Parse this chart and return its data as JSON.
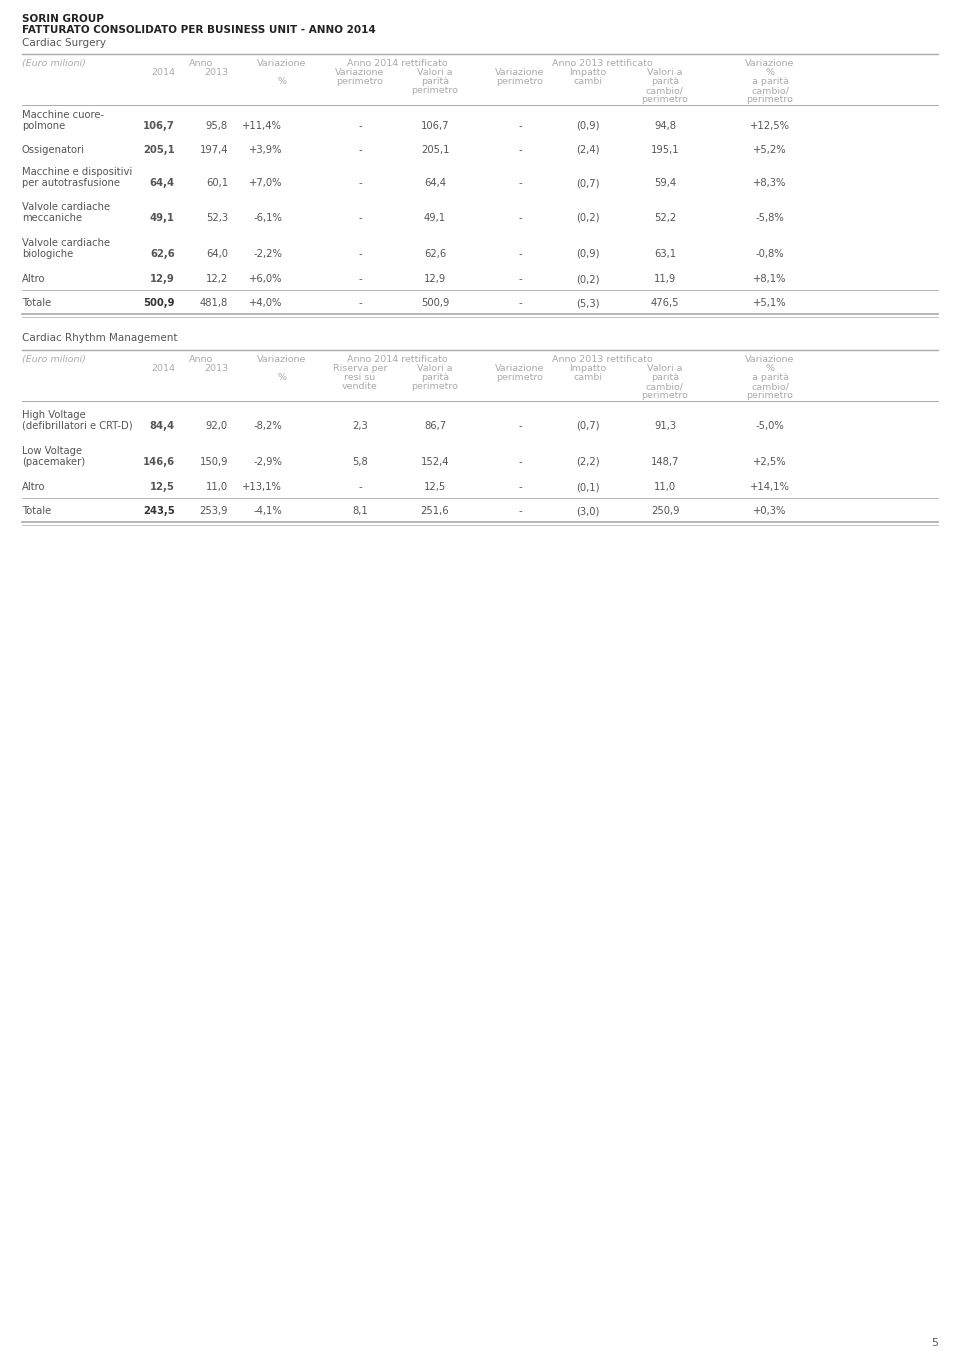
{
  "title_line1": "SORIN GROUP",
  "title_line2": "FATTURATO CONSOLIDATO PER BUSINESS UNIT - ANNO 2014",
  "title_line3": "Cardiac Surgery",
  "section2_label": "Cardiac Rhythm Management",
  "section1_rows": [
    {
      "label1": "Macchine cuore-",
      "label2": "polmone",
      "v2014": "106,7",
      "v2013": "95,8",
      "var": "+11,4%",
      "var_per": "-",
      "val_par": "106,7",
      "var_per2": "-",
      "imp_cambi": "(0,9)",
      "val_par2": "94,8",
      "var_fin": "+12,5%"
    },
    {
      "label1": "Ossigenatori",
      "label2": "",
      "v2014": "205,1",
      "v2013": "197,4",
      "var": "+3,9%",
      "var_per": "-",
      "val_par": "205,1",
      "var_per2": "-",
      "imp_cambi": "(2,4)",
      "val_par2": "195,1",
      "var_fin": "+5,2%"
    },
    {
      "label1": "Macchine e dispositivi",
      "label2": "per autotrasfusione",
      "v2014": "64,4",
      "v2013": "60,1",
      "var": "+7,0%",
      "var_per": "-",
      "val_par": "64,4",
      "var_per2": "-",
      "imp_cambi": "(0,7)",
      "val_par2": "59,4",
      "var_fin": "+8,3%"
    },
    {
      "label1": "Valvole cardiache",
      "label2": "meccaniche",
      "v2014": "49,1",
      "v2013": "52,3",
      "var": "-6,1%",
      "var_per": "-",
      "val_par": "49,1",
      "var_per2": "-",
      "imp_cambi": "(0,2)",
      "val_par2": "52,2",
      "var_fin": "-5,8%"
    },
    {
      "label1": "Valvole cardiache",
      "label2": "biologiche",
      "v2014": "62,6",
      "v2013": "64,0",
      "var": "-2,2%",
      "var_per": "-",
      "val_par": "62,6",
      "var_per2": "-",
      "imp_cambi": "(0,9)",
      "val_par2": "63,1",
      "var_fin": "-0,8%"
    },
    {
      "label1": "Altro",
      "label2": "",
      "v2014": "12,9",
      "v2013": "12,2",
      "var": "+6,0%",
      "var_per": "-",
      "val_par": "12,9",
      "var_per2": "-",
      "imp_cambi": "(0,2)",
      "val_par2": "11,9",
      "var_fin": "+8,1%"
    },
    {
      "label1": "Totale",
      "label2": "",
      "v2014": "500,9",
      "v2013": "481,8",
      "var": "+4,0%",
      "var_per": "-",
      "val_par": "500,9",
      "var_per2": "-",
      "imp_cambi": "(5,3)",
      "val_par2": "476,5",
      "var_fin": "+5,1%",
      "is_total": true
    }
  ],
  "section2_rows": [
    {
      "label1": "High Voltage",
      "label2": "(defibrillatori e CRT-D)",
      "v2014": "84,4",
      "v2013": "92,0",
      "var": "-8,2%",
      "var_per": "2,3",
      "val_par": "86,7",
      "var_per2": "-",
      "imp_cambi": "(0,7)",
      "val_par2": "91,3",
      "var_fin": "-5,0%"
    },
    {
      "label1": "Low Voltage",
      "label2": "(pacemaker)",
      "v2014": "146,6",
      "v2013": "150,9",
      "var": "-2,9%",
      "var_per": "5,8",
      "val_par": "152,4",
      "var_per2": "-",
      "imp_cambi": "(2,2)",
      "val_par2": "148,7",
      "var_fin": "+2,5%"
    },
    {
      "label1": "Altro",
      "label2": "",
      "v2014": "12,5",
      "v2013": "11,0",
      "var": "+13,1%",
      "var_per": "-",
      "val_par": "12,5",
      "var_per2": "-",
      "imp_cambi": "(0,1)",
      "val_par2": "11,0",
      "var_fin": "+14,1%"
    },
    {
      "label1": "Totale",
      "label2": "",
      "v2014": "243,5",
      "v2013": "253,9",
      "var": "-4,1%",
      "var_per": "8,1",
      "val_par": "251,6",
      "var_per2": "-",
      "imp_cambi": "(3,0)",
      "val_par2": "250,9",
      "var_fin": "+0,3%",
      "is_total": true
    }
  ],
  "page_number": "5",
  "bg_color": "#ffffff",
  "text_color": "#555555",
  "header_color": "#aaaaaa",
  "line_color": "#aaaaaa",
  "dark_color": "#333333"
}
